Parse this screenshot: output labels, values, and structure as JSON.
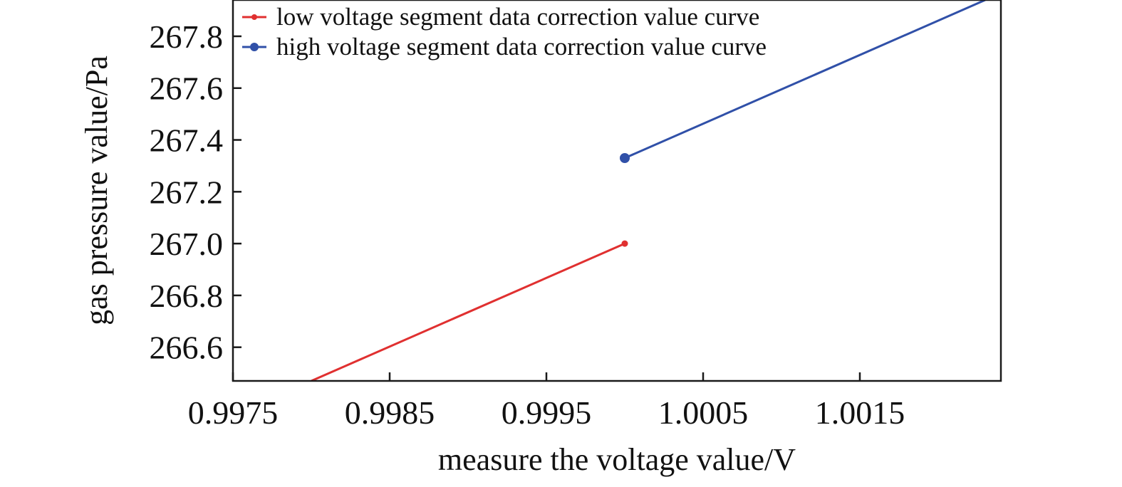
{
  "chart_data": {
    "type": "line",
    "title": "",
    "xlabel": "measure the voltage value/V",
    "ylabel": "gas pressure value/Pa",
    "xlim": [
      0.9975,
      1.0024
    ],
    "ylim": [
      266.47,
      267.94
    ],
    "x_ticks": [
      0.9975,
      0.9985,
      0.9995,
      1.0005,
      1.0015
    ],
    "x_tick_labels": [
      "0.9975",
      "0.9985",
      "0.9995",
      "1.0005",
      "1.0015"
    ],
    "y_ticks": [
      266.6,
      266.8,
      267.0,
      267.2,
      267.4,
      267.6,
      267.8
    ],
    "y_tick_labels": [
      "266.6",
      "266.8",
      "267.0",
      "267.2",
      "267.4",
      "267.6",
      "267.8"
    ],
    "grid": false,
    "legend_position": "top-left",
    "series": [
      {
        "name": "low voltage segment data correction value curve",
        "color": "#e03030",
        "marker": "small-dot",
        "x": [
          0.998,
          1.0
        ],
        "y": [
          266.47,
          267.0
        ]
      },
      {
        "name": "high voltage segment data correction value curve",
        "color": "#3050a8",
        "marker": "large-dot",
        "x": [
          1.0,
          1.0023
        ],
        "y": [
          267.33,
          267.94
        ]
      }
    ]
  }
}
